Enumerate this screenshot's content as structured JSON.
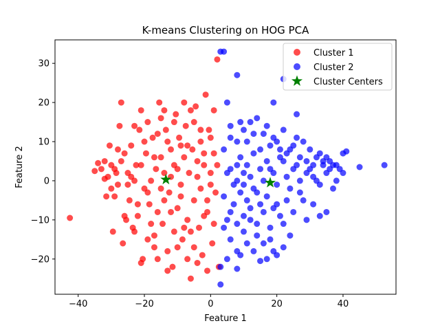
{
  "chart_data": {
    "type": "scatter",
    "title": "K-means Clustering on HOG PCA",
    "xlabel": "Feature 1",
    "ylabel": "Feature 2",
    "xlim": [
      -47,
      56
    ],
    "ylim": [
      -29,
      36
    ],
    "xticks": [
      -40,
      -20,
      0,
      20,
      40
    ],
    "yticks": [
      -20,
      -10,
      0,
      10,
      20,
      30
    ],
    "grid": false,
    "legend_position": "top-right",
    "colors": {
      "cluster1": "#ff0000",
      "cluster2": "#0000ff",
      "centers": "#008000"
    },
    "series": [
      {
        "name": "Cluster 1",
        "points": [
          [
            -42.5,
            -9.5
          ],
          [
            -35,
            2.5
          ],
          [
            -34,
            4.5
          ],
          [
            -33,
            3
          ],
          [
            -32,
            0.5
          ],
          [
            -31.5,
            -4
          ],
          [
            -31,
            1
          ],
          [
            -30.5,
            9
          ],
          [
            -30,
            4
          ],
          [
            -29.5,
            -13
          ],
          [
            -29,
            -4
          ],
          [
            -28.5,
            2
          ],
          [
            -28,
            -1
          ],
          [
            -27.5,
            14
          ],
          [
            -27,
            20
          ],
          [
            -26.5,
            -16
          ],
          [
            -26,
            7
          ],
          [
            -25.5,
            -10
          ],
          [
            -25,
            2
          ],
          [
            -24.5,
            -5
          ],
          [
            -24,
            9
          ],
          [
            -23.5,
            -12
          ],
          [
            -23,
            0
          ],
          [
            -22.5,
            4
          ],
          [
            -22,
            -9
          ],
          [
            -21.5,
            13
          ],
          [
            -21,
            18
          ],
          [
            -20.5,
            -20
          ],
          [
            -20,
            -2
          ],
          [
            -19.5,
            7
          ],
          [
            -19,
            15
          ],
          [
            -18.5,
            -6
          ],
          [
            -18,
            0
          ],
          [
            -17.5,
            11
          ],
          [
            -17,
            -14
          ],
          [
            -16.5,
            3
          ],
          [
            -16,
            -8
          ],
          [
            -15.5,
            20
          ],
          [
            -15,
            6
          ],
          [
            -14.5,
            -11
          ],
          [
            -14,
            2
          ],
          [
            -13.5,
            13
          ],
          [
            -13,
            -18
          ],
          [
            -12.5,
            -3
          ],
          [
            -12,
            8
          ],
          [
            -11.5,
            -22
          ],
          [
            -11,
            4
          ],
          [
            -10.5,
            17
          ],
          [
            -10,
            -7
          ],
          [
            -9.5,
            11
          ],
          [
            -9,
            -1
          ],
          [
            -8.5,
            -15
          ],
          [
            -8,
            6
          ],
          [
            -7.5,
            14
          ],
          [
            -7,
            -10
          ],
          [
            -6.5,
            2
          ],
          [
            -6,
            -25
          ],
          [
            -5.5,
            8
          ],
          [
            -5,
            -5
          ],
          [
            -4.5,
            19
          ],
          [
            -4,
            1
          ],
          [
            -3.5,
            -12
          ],
          [
            -3,
            10
          ],
          [
            -2.5,
            -19
          ],
          [
            -2,
            4
          ],
          [
            -1.5,
            22
          ],
          [
            -1,
            -8
          ],
          [
            -0.5,
            13
          ],
          [
            0,
            2
          ],
          [
            0.5,
            -16
          ],
          [
            1,
            7
          ],
          [
            1.5,
            -3
          ],
          [
            2,
            31
          ],
          [
            2.5,
            -22
          ],
          [
            -21,
            -21
          ],
          [
            -19,
            -3
          ],
          [
            -17,
            -17
          ],
          [
            -15,
            16
          ],
          [
            -13,
            10
          ],
          [
            -11,
            -13
          ],
          [
            -9,
            9
          ],
          [
            -7,
            -20
          ],
          [
            -5,
            15
          ],
          [
            -3,
            -2
          ],
          [
            -1,
            -23
          ],
          [
            1,
            18
          ],
          [
            -23,
            14
          ],
          [
            -25,
            -1
          ],
          [
            -27,
            5
          ],
          [
            -29,
            3
          ],
          [
            -18,
            -11
          ],
          [
            -16,
            12
          ],
          [
            -14,
            -5
          ],
          [
            -12,
            1
          ],
          [
            -10,
            -17
          ],
          [
            -8,
            20
          ],
          [
            -6,
            -13
          ],
          [
            -4,
            5
          ],
          [
            -2,
            -9
          ],
          [
            0,
            11
          ],
          [
            -20,
            10
          ],
          [
            -22,
            -6
          ],
          [
            -24,
            1
          ],
          [
            -26,
            -9
          ],
          [
            -28,
            8
          ],
          [
            -15,
            -2
          ],
          [
            -13,
            -23
          ],
          [
            -11,
            15
          ],
          [
            -9,
            -4
          ],
          [
            -7,
            9
          ],
          [
            -5,
            -17
          ],
          [
            -3,
            13
          ],
          [
            -1,
            -5
          ],
          [
            1,
            -11
          ],
          [
            -30,
            -2
          ],
          [
            -32,
            5
          ],
          [
            -17,
            6
          ],
          [
            -19,
            -15
          ],
          [
            -21,
            4
          ],
          [
            -23,
            -13
          ],
          [
            -12,
            -8
          ],
          [
            -10,
            3
          ],
          [
            -8,
            -12
          ],
          [
            -6,
            18
          ],
          [
            -4,
            -21
          ],
          [
            -2,
            7
          ],
          [
            0,
            -1
          ],
          [
            2,
            4
          ],
          [
            -14,
            18
          ],
          [
            -16,
            -20
          ]
        ]
      },
      {
        "name": "Cluster 2",
        "points": [
          [
            3,
            33
          ],
          [
            4,
            33
          ],
          [
            8,
            27
          ],
          [
            22,
            26
          ],
          [
            26,
            17
          ],
          [
            19,
            20
          ],
          [
            3,
            -26.5
          ],
          [
            5,
            20
          ],
          [
            6,
            14
          ],
          [
            8,
            10
          ],
          [
            10,
            13
          ],
          [
            12,
            15
          ],
          [
            14,
            16
          ],
          [
            16,
            12
          ],
          [
            18,
            9
          ],
          [
            20,
            10
          ],
          [
            22,
            13
          ],
          [
            24,
            8
          ],
          [
            26,
            11
          ],
          [
            28,
            10
          ],
          [
            30,
            8
          ],
          [
            32,
            6
          ],
          [
            34,
            4
          ],
          [
            36,
            5
          ],
          [
            38,
            4
          ],
          [
            40,
            7
          ],
          [
            41,
            7.5
          ],
          [
            45,
            3.5
          ],
          [
            52.5,
            4
          ],
          [
            9,
            6
          ],
          [
            11,
            4
          ],
          [
            13,
            7
          ],
          [
            15,
            3
          ],
          [
            17,
            5
          ],
          [
            19,
            2
          ],
          [
            21,
            6
          ],
          [
            23,
            1
          ],
          [
            25,
            3
          ],
          [
            27,
            0
          ],
          [
            29,
            2
          ],
          [
            31,
            1
          ],
          [
            33,
            -1
          ],
          [
            35,
            2
          ],
          [
            37,
            -2
          ],
          [
            39,
            3
          ],
          [
            5,
            2
          ],
          [
            7,
            -1
          ],
          [
            9,
            -3
          ],
          [
            11,
            -5
          ],
          [
            13,
            -2
          ],
          [
            15,
            -6
          ],
          [
            17,
            -4
          ],
          [
            19,
            -7
          ],
          [
            21,
            -9
          ],
          [
            23,
            -5
          ],
          [
            25,
            -8
          ],
          [
            27,
            -3
          ],
          [
            29,
            -10
          ],
          [
            31,
            -6
          ],
          [
            33,
            -9
          ],
          [
            35,
            -8
          ],
          [
            4,
            -4
          ],
          [
            6,
            -8
          ],
          [
            8,
            -11
          ],
          [
            10,
            -13
          ],
          [
            12,
            -10
          ],
          [
            14,
            -14
          ],
          [
            16,
            -16
          ],
          [
            18,
            -12
          ],
          [
            20,
            -19
          ],
          [
            22,
            -17
          ],
          [
            15,
            -20.5
          ],
          [
            8,
            -22.5
          ],
          [
            5,
            -20
          ],
          [
            3,
            -22
          ],
          [
            4,
            8
          ],
          [
            6,
            11
          ],
          [
            8,
            4
          ],
          [
            10,
            -1
          ],
          [
            12,
            1
          ],
          [
            14,
            -3
          ],
          [
            16,
            0
          ],
          [
            18,
            3
          ],
          [
            20,
            -1
          ],
          [
            22,
            5
          ],
          [
            24,
            -2
          ],
          [
            26,
            4
          ],
          [
            28,
            -5
          ],
          [
            30,
            3
          ],
          [
            32,
            0
          ],
          [
            34,
            5
          ],
          [
            36,
            3
          ],
          [
            38,
            0
          ],
          [
            40,
            2
          ],
          [
            4,
            -12
          ],
          [
            6,
            -15
          ],
          [
            8,
            -18
          ],
          [
            10,
            -9
          ],
          [
            12,
            -7
          ],
          [
            14,
            -11
          ],
          [
            16,
            -8
          ],
          [
            18,
            -15
          ],
          [
            20,
            -6
          ],
          [
            22,
            -11
          ],
          [
            24,
            -14
          ],
          [
            9,
            15
          ],
          [
            11,
            10
          ],
          [
            13,
            12
          ],
          [
            15,
            8
          ],
          [
            17,
            14
          ],
          [
            19,
            11
          ],
          [
            21,
            8
          ],
          [
            23,
            7
          ],
          [
            25,
            9
          ],
          [
            27,
            6
          ],
          [
            29,
            5
          ],
          [
            31,
            4
          ],
          [
            33,
            7
          ],
          [
            35,
            6
          ],
          [
            37,
            4
          ],
          [
            7,
            -6
          ],
          [
            5,
            -10
          ],
          [
            9,
            -19
          ],
          [
            11,
            -16
          ],
          [
            13,
            -18
          ],
          [
            17,
            -20
          ],
          [
            19,
            -18
          ],
          [
            6,
            3
          ],
          [
            8,
            0
          ],
          [
            10,
            2
          ]
        ]
      },
      {
        "name": "Cluster Centers",
        "points": [
          [
            -13.5,
            0.3
          ],
          [
            18,
            -0.5
          ]
        ]
      }
    ]
  }
}
